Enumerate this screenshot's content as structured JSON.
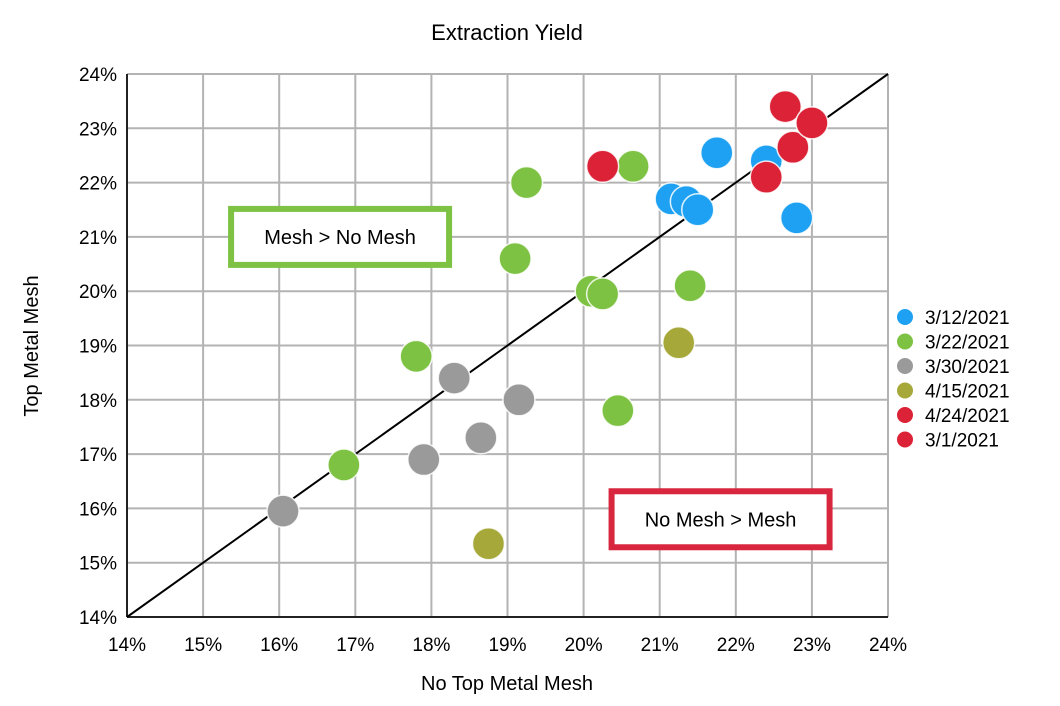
{
  "chart_data": {
    "type": "scatter",
    "title": "Extraction Yield",
    "xlabel": "No Top Metal Mesh",
    "ylabel": "Top Metal Mesh",
    "xlim": [
      14,
      24
    ],
    "ylim": [
      14,
      24
    ],
    "x_ticks": [
      "14%",
      "15%",
      "16%",
      "17%",
      "18%",
      "19%",
      "20%",
      "21%",
      "22%",
      "23%",
      "24%"
    ],
    "y_ticks": [
      "14%",
      "15%",
      "16%",
      "17%",
      "18%",
      "19%",
      "20%",
      "21%",
      "22%",
      "23%",
      "24%"
    ],
    "grid": true,
    "legend_position": "right",
    "reference_line": {
      "from": [
        14,
        14
      ],
      "to": [
        24,
        24
      ],
      "color": "#000000"
    },
    "annotations": [
      {
        "text": "Mesh > No Mesh",
        "x": 16.8,
        "y": 21.0,
        "border_color": "#7dc242"
      },
      {
        "text": "No Mesh > Mesh",
        "x": 21.8,
        "y": 15.8,
        "border_color": "#d7263d"
      }
    ],
    "series": [
      {
        "name": "3/12/2021",
        "color": "#1ea1f2",
        "points": [
          [
            21.75,
            22.55
          ],
          [
            22.4,
            22.4
          ],
          [
            21.15,
            21.7
          ],
          [
            21.35,
            21.65
          ],
          [
            21.5,
            21.5
          ],
          [
            22.8,
            21.35
          ]
        ]
      },
      {
        "name": "3/22/2021",
        "color": "#7dc242",
        "points": [
          [
            19.25,
            22.0
          ],
          [
            20.65,
            22.3
          ],
          [
            19.1,
            20.6
          ],
          [
            20.1,
            20.0
          ],
          [
            20.25,
            19.95
          ],
          [
            21.4,
            20.1
          ],
          [
            17.8,
            18.8
          ],
          [
            16.85,
            16.8
          ],
          [
            20.45,
            17.8
          ]
        ]
      },
      {
        "name": "3/30/2021",
        "color": "#9a9a9a",
        "points": [
          [
            18.3,
            18.4
          ],
          [
            17.9,
            16.9
          ],
          [
            18.65,
            17.3
          ],
          [
            19.15,
            18.0
          ],
          [
            16.05,
            15.95
          ]
        ]
      },
      {
        "name": "4/15/2021",
        "color": "#a6a83a",
        "points": [
          [
            21.25,
            19.05
          ],
          [
            18.75,
            15.35
          ]
        ]
      },
      {
        "name": "4/24/2021",
        "color": "#dc2237",
        "points": [
          [
            20.25,
            22.3
          ],
          [
            22.4,
            22.1
          ],
          [
            22.75,
            22.65
          ],
          [
            22.65,
            23.4
          ],
          [
            23.0,
            23.1
          ]
        ]
      },
      {
        "name": "3/1/2021",
        "color": "#dc2237",
        "points": []
      }
    ]
  }
}
